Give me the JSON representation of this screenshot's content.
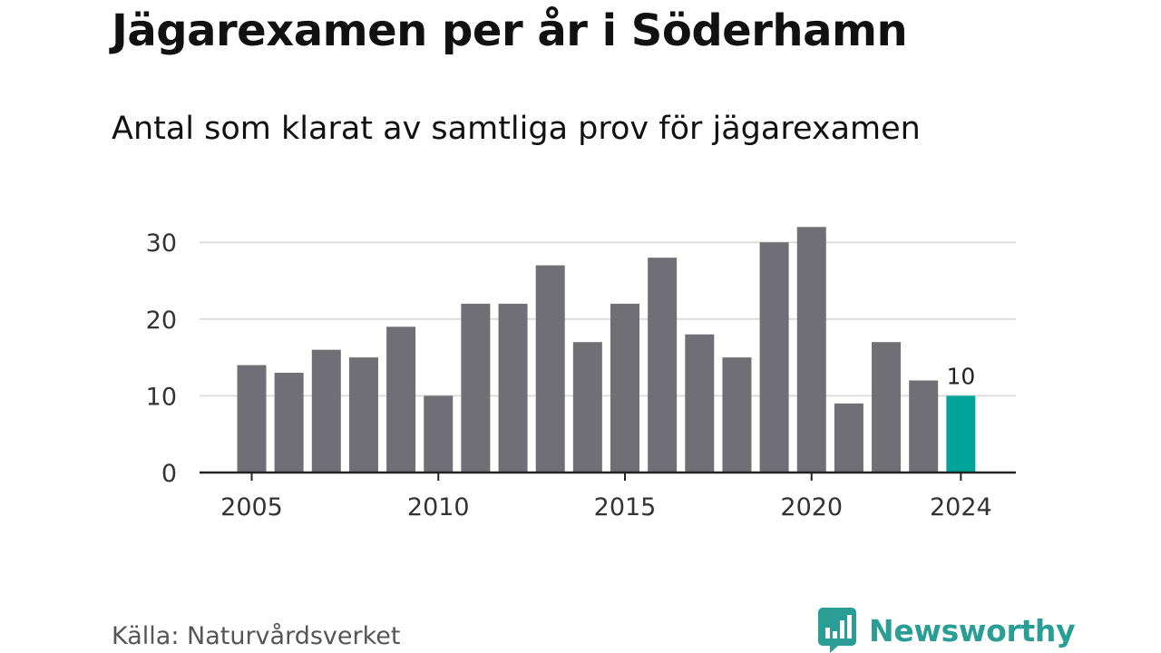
{
  "header": {
    "title": "Jägarexamen per år i Söderhamn",
    "subtitle": "Antal som klarat av samtliga prov för jägarexamen"
  },
  "footer": {
    "source": "Källa: Naturvårdsverket",
    "brand": "Newsworthy",
    "brand_icon": "bar-chart-speech-bubble-icon"
  },
  "colors": {
    "bar": "#706f75",
    "highlight": "#00a499",
    "grid": "#dddddd",
    "axis": "#222222",
    "brand": "#2a9d94"
  },
  "chart_data": {
    "type": "bar",
    "title": "Jägarexamen per år i Söderhamn",
    "subtitle": "Antal som klarat av samtliga prov för jägarexamen",
    "xlabel": "",
    "ylabel": "",
    "x": [
      2005,
      2006,
      2007,
      2008,
      2009,
      2010,
      2011,
      2012,
      2013,
      2014,
      2015,
      2016,
      2017,
      2018,
      2019,
      2020,
      2021,
      2022,
      2023,
      2024
    ],
    "values": [
      14,
      13,
      16,
      15,
      19,
      10,
      22,
      22,
      27,
      17,
      22,
      28,
      18,
      15,
      30,
      32,
      9,
      17,
      12,
      10
    ],
    "highlight": 2024,
    "data_labels": [
      {
        "x": 2024,
        "label": "10"
      }
    ],
    "ylim": [
      0,
      33
    ],
    "yticks": [
      0,
      10,
      20,
      30
    ],
    "xticks": [
      2005,
      2010,
      2015,
      2020,
      2024
    ],
    "grid": true
  }
}
